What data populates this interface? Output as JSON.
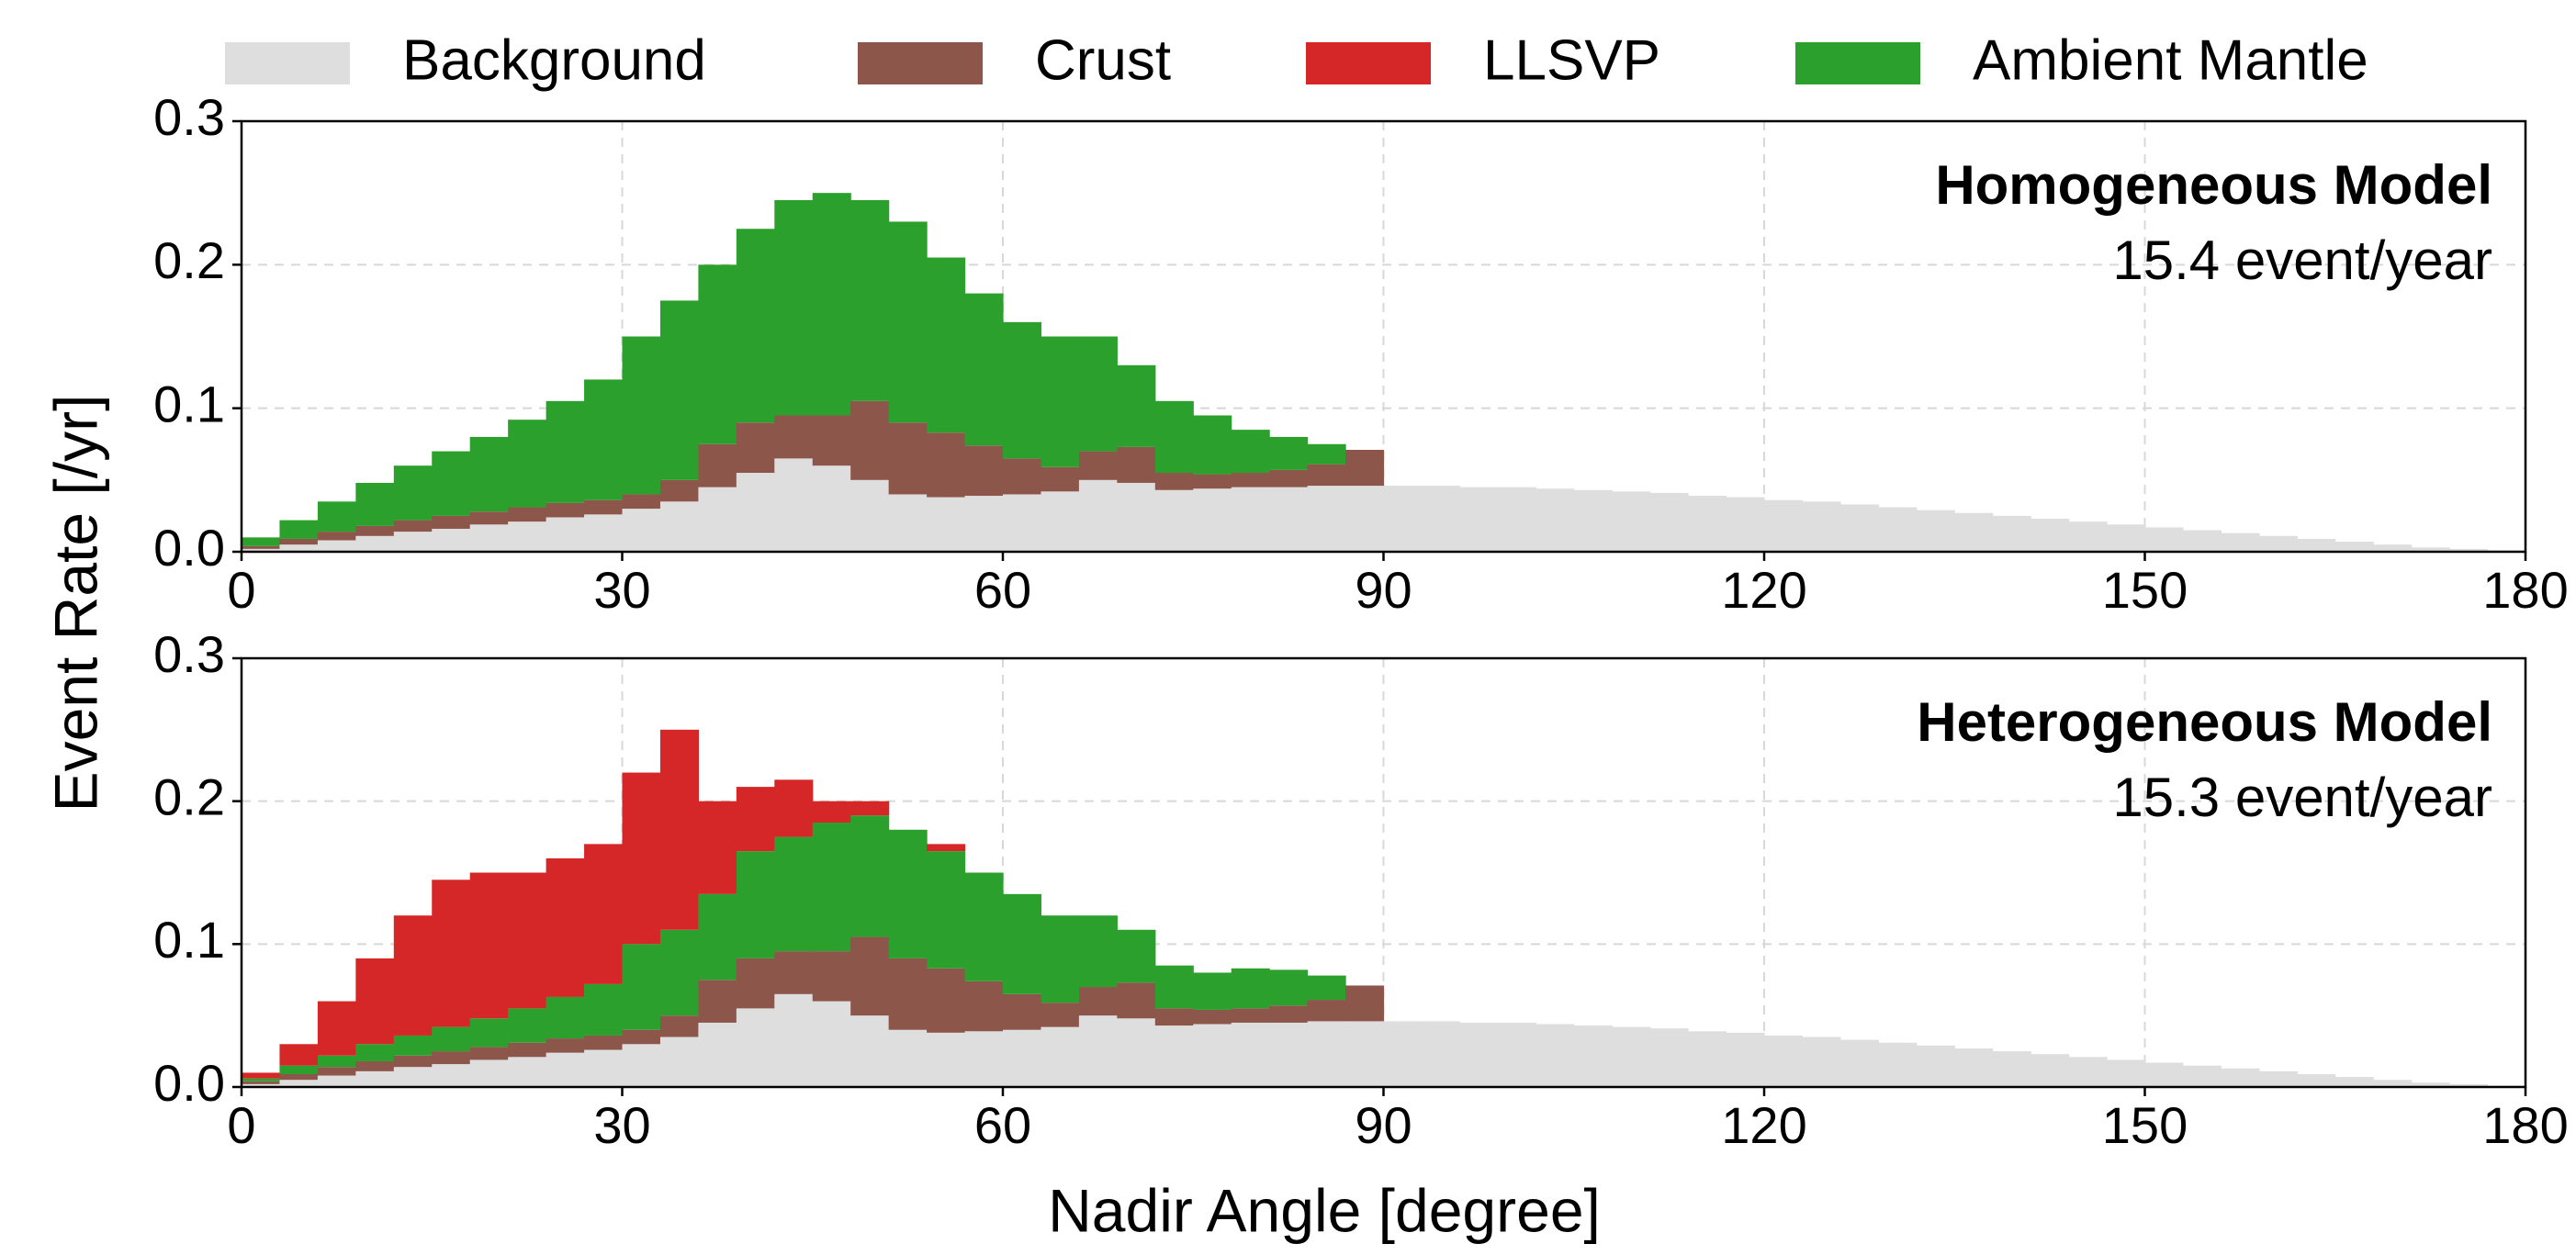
{
  "xlabel": "Nadir Angle [degree]",
  "ylabel": "Event Rate [/yr]",
  "chart_data": [
    {
      "type": "histogram",
      "annotations": [
        "Homogeneous Model",
        "15.4 event/year"
      ],
      "bins": [
        0,
        3,
        6,
        9,
        12,
        15,
        18,
        21,
        24,
        27,
        30,
        33,
        36,
        39,
        42,
        45,
        48,
        51,
        54,
        57,
        60,
        63,
        66,
        69,
        72,
        75,
        78,
        81,
        84,
        87,
        90,
        93,
        96,
        99,
        102,
        105,
        108,
        111,
        114,
        117,
        120,
        123,
        126,
        129,
        132,
        135,
        138,
        141,
        144,
        147,
        150,
        153,
        156,
        159,
        162,
        165,
        168,
        171,
        174,
        177,
        180
      ],
      "series": [
        {
          "color": "#dedede",
          "values": [
            0.002,
            0.005,
            0.008,
            0.011,
            0.014,
            0.016,
            0.019,
            0.021,
            0.024,
            0.026,
            0.03,
            0.035,
            0.045,
            0.055,
            0.065,
            0.06,
            0.05,
            0.04,
            0.038,
            0.039,
            0.04,
            0.042,
            0.05,
            0.048,
            0.043,
            0.044,
            0.045,
            0.045,
            0.046,
            0.046,
            0.046,
            0.046,
            0.045,
            0.045,
            0.044,
            0.043,
            0.042,
            0.041,
            0.039,
            0.038,
            0.036,
            0.035,
            0.033,
            0.031,
            0.029,
            0.027,
            0.025,
            0.023,
            0.021,
            0.019,
            0.017,
            0.015,
            0.013,
            0.011,
            0.009,
            0.007,
            0.005,
            0.003,
            0.002,
            0.001
          ]
        },
        {
          "color": "#8c564b",
          "values": [
            0.002,
            0.004,
            0.006,
            0.007,
            0.008,
            0.009,
            0.009,
            0.01,
            0.01,
            0.01,
            0.01,
            0.015,
            0.03,
            0.035,
            0.03,
            0.035,
            0.055,
            0.05,
            0.045,
            0.035,
            0.025,
            0.017,
            0.02,
            0.025,
            0.012,
            0.01,
            0.01,
            0.012,
            0.015,
            0.025,
            0,
            0,
            0,
            0,
            0,
            0,
            0,
            0,
            0,
            0,
            0,
            0,
            0,
            0,
            0,
            0,
            0,
            0,
            0,
            0,
            0,
            0,
            0,
            0,
            0,
            0,
            0,
            0,
            0,
            0
          ]
        },
        {
          "color": "#2ca02c",
          "values": [
            0.006,
            0.013,
            0.021,
            0.03,
            0.038,
            0.045,
            0.052,
            0.061,
            0.071,
            0.084,
            0.11,
            0.125,
            0.125,
            0.135,
            0.15,
            0.155,
            0.14,
            0.14,
            0.122,
            0.106,
            0.095,
            0.091,
            0.08,
            0.057,
            0.05,
            0.041,
            0.03,
            0.023,
            0.014,
            0,
            0,
            0,
            0,
            0,
            0,
            0,
            0,
            0,
            0,
            0,
            0,
            0,
            0,
            0,
            0,
            0,
            0,
            0,
            0,
            0,
            0,
            0,
            0,
            0,
            0,
            0,
            0,
            0,
            0,
            0
          ]
        }
      ],
      "xlim": [
        0,
        180
      ],
      "xticks": [
        0,
        30,
        60,
        90,
        120,
        150,
        180
      ],
      "ylim": [
        0,
        0.3
      ],
      "yticks": [
        {
          "value": 0,
          "label": "0.0"
        },
        0.1,
        0.2,
        0.3
      ],
      "grid": true
    },
    {
      "type": "histogram",
      "annotations": [
        "Heterogeneous Model",
        "15.3 event/year"
      ],
      "bins": [
        0,
        3,
        6,
        9,
        12,
        15,
        18,
        21,
        24,
        27,
        30,
        33,
        36,
        39,
        42,
        45,
        48,
        51,
        54,
        57,
        60,
        63,
        66,
        69,
        72,
        75,
        78,
        81,
        84,
        87,
        90,
        93,
        96,
        99,
        102,
        105,
        108,
        111,
        114,
        117,
        120,
        123,
        126,
        129,
        132,
        135,
        138,
        141,
        144,
        147,
        150,
        153,
        156,
        159,
        162,
        165,
        168,
        171,
        174,
        177,
        180
      ],
      "series": [
        {
          "name": "Background",
          "color": "#dedede",
          "values": [
            0.002,
            0.005,
            0.008,
            0.011,
            0.014,
            0.016,
            0.019,
            0.021,
            0.024,
            0.026,
            0.03,
            0.035,
            0.045,
            0.055,
            0.065,
            0.06,
            0.05,
            0.04,
            0.038,
            0.039,
            0.04,
            0.042,
            0.05,
            0.048,
            0.043,
            0.044,
            0.045,
            0.045,
            0.046,
            0.046,
            0.046,
            0.046,
            0.045,
            0.045,
            0.044,
            0.043,
            0.042,
            0.041,
            0.039,
            0.038,
            0.036,
            0.035,
            0.033,
            0.031,
            0.029,
            0.027,
            0.025,
            0.023,
            0.021,
            0.019,
            0.017,
            0.015,
            0.013,
            0.011,
            0.009,
            0.007,
            0.005,
            0.003,
            0.002,
            0.001
          ]
        },
        {
          "name": "Crust",
          "color": "#8c564b",
          "values": [
            0.002,
            0.004,
            0.006,
            0.007,
            0.008,
            0.009,
            0.009,
            0.01,
            0.01,
            0.01,
            0.01,
            0.015,
            0.03,
            0.035,
            0.03,
            0.035,
            0.055,
            0.05,
            0.045,
            0.035,
            0.025,
            0.017,
            0.02,
            0.025,
            0.012,
            0.01,
            0.01,
            0.012,
            0.015,
            0.025,
            0,
            0,
            0,
            0,
            0,
            0,
            0,
            0,
            0,
            0,
            0,
            0,
            0,
            0,
            0,
            0,
            0,
            0,
            0,
            0,
            0,
            0,
            0,
            0,
            0,
            0,
            0,
            0,
            0,
            0
          ]
        },
        {
          "name": "LLSVP",
          "color": "#d62728",
          "values": [
            0.004,
            0.015,
            0.038,
            0.06,
            0.084,
            0.103,
            0.102,
            0.095,
            0.097,
            0.098,
            0.12,
            0.14,
            0.065,
            0.045,
            0.04,
            0.015,
            0.01,
            0,
            0.005,
            0,
            0,
            0,
            0,
            0,
            0,
            0,
            0,
            0,
            0,
            0,
            0,
            0,
            0,
            0,
            0,
            0,
            0,
            0,
            0,
            0,
            0,
            0,
            0,
            0,
            0,
            0,
            0,
            0,
            0,
            0,
            0,
            0,
            0,
            0,
            0,
            0,
            0,
            0,
            0,
            0
          ]
        },
        {
          "name": "Ambient Mantle",
          "color": "#2ca02c",
          "values": [
            0.002,
            0.006,
            0.008,
            0.012,
            0.014,
            0.017,
            0.02,
            0.024,
            0.029,
            0.036,
            0.06,
            0.06,
            0.06,
            0.075,
            0.08,
            0.09,
            0.085,
            0.09,
            0.082,
            0.076,
            0.07,
            0.061,
            0.05,
            0.037,
            0.03,
            0.026,
            0.028,
            0.025,
            0.017,
            0,
            0,
            0,
            0,
            0,
            0,
            0,
            0,
            0,
            0,
            0,
            0,
            0,
            0,
            0,
            0,
            0,
            0,
            0,
            0,
            0,
            0,
            0,
            0,
            0,
            0,
            0,
            0,
            0,
            0,
            0
          ]
        }
      ],
      "stack_order": [
        0,
        1,
        3,
        2
      ],
      "xlim": [
        0,
        180
      ],
      "xticks": [
        0,
        30,
        60,
        90,
        120,
        150,
        180
      ],
      "ylim": [
        0,
        0.3
      ],
      "yticks": [
        {
          "value": 0,
          "label": "0.0"
        },
        0.1,
        0.2,
        0.3
      ],
      "grid": true
    }
  ]
}
